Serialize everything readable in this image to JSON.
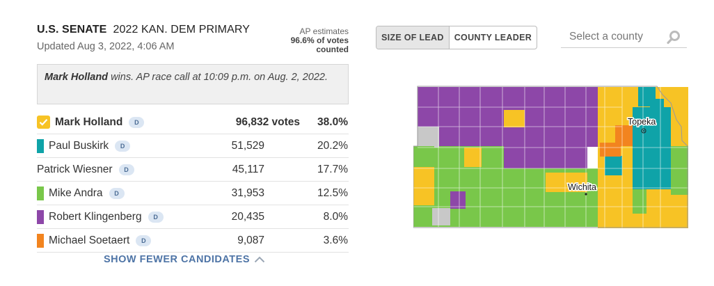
{
  "header": {
    "race_office": "U.S. SENATE",
    "race_name": "2022 KAN. DEM PRIMARY",
    "updated": "Updated Aug 3, 2022, 4:06 AM",
    "ap_line1": "AP estimates",
    "ap_line2": "96.6% of votes",
    "ap_line3": "counted"
  },
  "call": {
    "winner": "Mark Holland",
    "text": " wins. AP race call at 10:09 p.m. on Aug. 2, 2022."
  },
  "candidates": [
    {
      "name": "Mark Holland",
      "party": "D",
      "votes": "96,832 votes",
      "pct": "38.0%",
      "color": "#f7c325",
      "winner": true
    },
    {
      "name": "Paul Buskirk",
      "party": "D",
      "votes": "51,529",
      "pct": "20.2%",
      "color": "#0fa3a8"
    },
    {
      "name": "Patrick Wiesner",
      "party": "D",
      "votes": "45,117",
      "pct": "17.7%",
      "color": ""
    },
    {
      "name": "Mike Andra",
      "party": "D",
      "votes": "31,953",
      "pct": "12.5%",
      "color": "#79c74a"
    },
    {
      "name": "Robert Klingenberg",
      "party": "D",
      "votes": "20,435",
      "pct": "8.0%",
      "color": "#8d47a8"
    },
    {
      "name": "Michael Soetaert",
      "party": "D",
      "votes": "9,087",
      "pct": "3.6%",
      "color": "#f2841f"
    }
  ],
  "show_fewer": "SHOW FEWER CANDIDATES",
  "map_controls": {
    "size_of_lead": "SIZE OF LEAD",
    "county_leader": "COUNTY LEADER",
    "search_placeholder": "Select a county"
  },
  "map": {
    "cities": [
      "Topeka",
      "Wichita"
    ],
    "colors": {
      "holland": "#f7c325",
      "buskirk": "#0fa3a8",
      "andra": "#79c74a",
      "klingenberg": "#8d47a8",
      "soetaert": "#f2841f",
      "no_data": "#c8c8c8"
    }
  }
}
